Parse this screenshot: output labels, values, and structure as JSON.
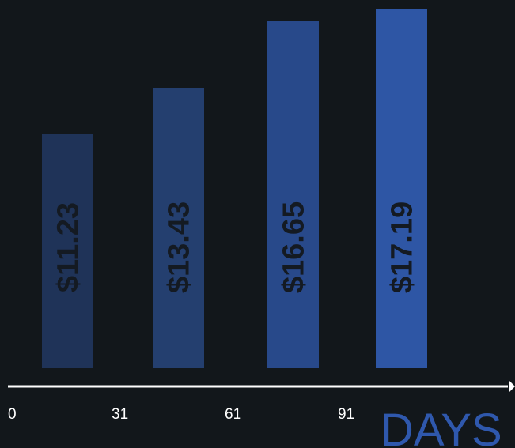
{
  "chart_data": {
    "type": "bar",
    "categories": [
      "0",
      "31",
      "61",
      "91"
    ],
    "values": [
      11.23,
      13.43,
      16.65,
      17.19
    ],
    "value_labels": [
      "$11.23",
      "$13.43",
      "$16.65",
      "$17.19"
    ],
    "xlabel": "DAYS",
    "ylim": [
      0,
      17.19
    ],
    "grid": false,
    "legend": "none"
  },
  "colors": {
    "background": "#12171b",
    "bars": [
      "#1f3358",
      "#243f6f",
      "#28498a",
      "#2e56a5"
    ],
    "value_label": "#141a22",
    "axis": "#ffffff",
    "tick_label": "#ffffff",
    "axis_title": "#2f58ad"
  }
}
